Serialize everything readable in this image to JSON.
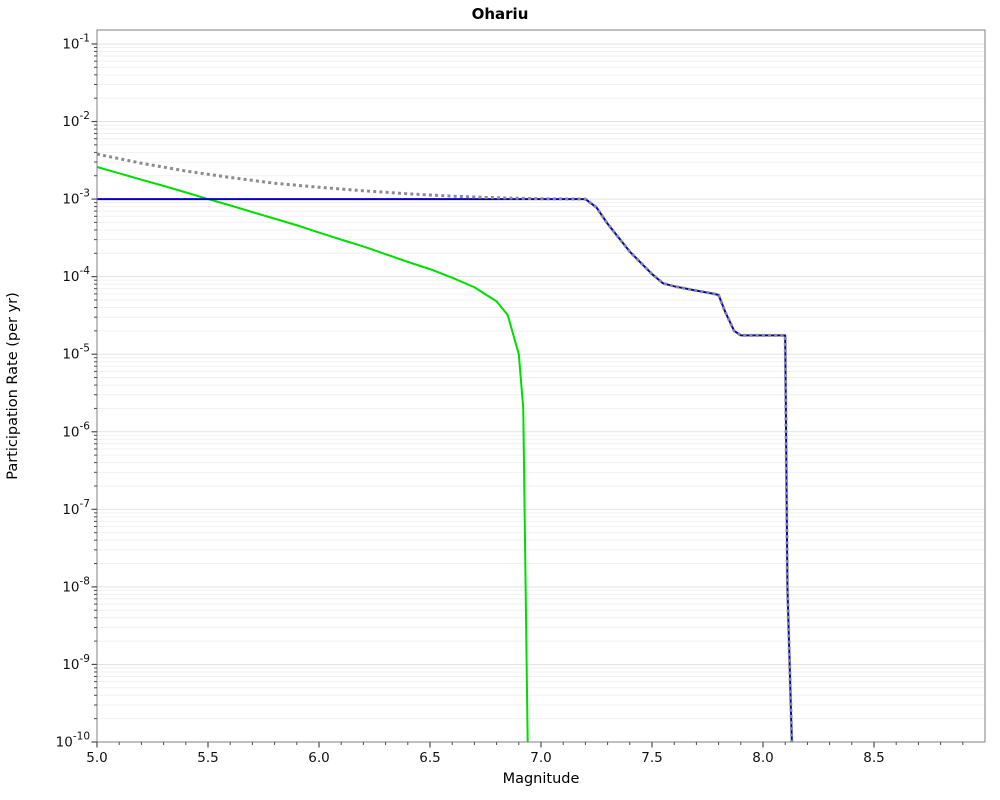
{
  "chart_data": {
    "type": "line",
    "title": "Ohariu",
    "xlabel": "Magnitude",
    "ylabel": "Participation Rate (per yr)",
    "xlim": [
      5.0,
      9.0
    ],
    "y_scale": "log",
    "ylim": [
      1e-10,
      0.1
    ],
    "grid": "horizontal light-gray lines at every log decade and minor log position",
    "legend": null,
    "x_tick_labels": [
      "5.0",
      "5.5",
      "6.0",
      "6.5",
      "7.0",
      "7.5",
      "8.0",
      "8.5"
    ],
    "y_tick_exponents": [
      -1,
      -2,
      -3,
      -4,
      -5,
      -6,
      -7,
      -8,
      -9,
      -10
    ],
    "series": [
      {
        "name": "green-solid-line",
        "color": "#00dd00",
        "line_style": "solid",
        "line_width": 2,
        "points": [
          [
            5.0,
            0.0026
          ],
          [
            5.1,
            0.00215
          ],
          [
            5.2,
            0.00178
          ],
          [
            5.3,
            0.00148
          ],
          [
            5.4,
            0.00122
          ],
          [
            5.5,
            0.001
          ],
          [
            5.6,
            0.00083
          ],
          [
            5.7,
            0.00068
          ],
          [
            5.8,
            0.00056
          ],
          [
            5.9,
            0.00046
          ],
          [
            6.0,
            0.00037
          ],
          [
            6.1,
            0.0003
          ],
          [
            6.2,
            0.000245
          ],
          [
            6.3,
            0.000195
          ],
          [
            6.4,
            0.000155
          ],
          [
            6.5,
            0.000125
          ],
          [
            6.6,
            9.7e-05
          ],
          [
            6.7,
            7.3e-05
          ],
          [
            6.8,
            4.8e-05
          ],
          [
            6.85,
            3.2e-05
          ],
          [
            6.9,
            1e-05
          ],
          [
            6.92,
            2e-06
          ],
          [
            6.94,
            1e-10
          ]
        ]
      },
      {
        "name": "blue-solid-line",
        "color": "#0000cc",
        "line_style": "solid",
        "line_width": 2,
        "points": [
          [
            5.0,
            0.001
          ],
          [
            7.2,
            0.001
          ],
          [
            7.25,
            0.00078
          ],
          [
            7.3,
            0.00048
          ],
          [
            7.4,
            0.00021
          ],
          [
            7.5,
            0.000108
          ],
          [
            7.55,
            8.2e-05
          ],
          [
            7.6,
            7.5e-05
          ],
          [
            7.7,
            6.6e-05
          ],
          [
            7.78,
            6e-05
          ],
          [
            7.8,
            5.8e-05
          ],
          [
            7.83,
            3.5e-05
          ],
          [
            7.87,
            2e-05
          ],
          [
            7.9,
            1.75e-05
          ],
          [
            8.1,
            1.75e-05
          ],
          [
            8.11,
            1e-08
          ],
          [
            8.13,
            1e-10
          ]
        ]
      },
      {
        "name": "gray-dotted-line",
        "color": "#8c8c8c",
        "line_style": "dotted",
        "line_width": 3,
        "points": [
          [
            5.0,
            0.0038
          ],
          [
            5.2,
            0.0029
          ],
          [
            5.4,
            0.0023
          ],
          [
            5.6,
            0.0019
          ],
          [
            5.8,
            0.0016
          ],
          [
            6.0,
            0.00142
          ],
          [
            6.2,
            0.00128
          ],
          [
            6.4,
            0.00117
          ],
          [
            6.6,
            0.00109
          ],
          [
            6.8,
            0.00104
          ],
          [
            7.0,
            0.00101
          ],
          [
            7.2,
            0.001
          ],
          [
            7.25,
            0.00078
          ],
          [
            7.3,
            0.00048
          ],
          [
            7.4,
            0.00021
          ],
          [
            7.5,
            0.000108
          ],
          [
            7.55,
            8.2e-05
          ],
          [
            7.6,
            7.5e-05
          ],
          [
            7.7,
            6.6e-05
          ],
          [
            7.78,
            6e-05
          ],
          [
            7.8,
            5.8e-05
          ],
          [
            7.83,
            3.5e-05
          ],
          [
            7.87,
            2e-05
          ],
          [
            7.9,
            1.75e-05
          ],
          [
            8.1,
            1.75e-05
          ],
          [
            8.11,
            1e-08
          ],
          [
            8.13,
            1e-10
          ]
        ]
      }
    ]
  }
}
